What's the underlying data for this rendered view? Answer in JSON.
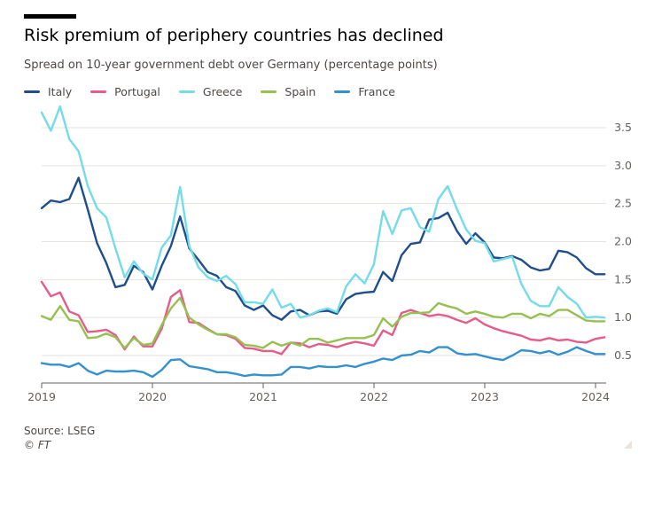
{
  "header": {
    "title": "Risk premium of periphery countries has declined",
    "subtitle": "Spread on 10-year government debt over Germany (percentage points)"
  },
  "footer": {
    "source": "Source: LSEG",
    "credit": "© FT"
  },
  "chart_data": {
    "type": "line",
    "title": "Risk premium of periphery countries has declined",
    "subtitle": "Spread on 10-year government debt over Germany (percentage points)",
    "xlabel": "",
    "ylabel": "",
    "xlim": [
      2019.0,
      2024.2
    ],
    "ylim": [
      0.2,
      3.7
    ],
    "yticks": [
      0.5,
      1.0,
      1.5,
      2.0,
      2.5,
      3.0,
      3.5
    ],
    "ytick_labels": [
      "0.5",
      "1.0",
      "1.5",
      "2.0",
      "2.5",
      "3.0",
      "3.5"
    ],
    "xticks": [
      2019,
      2020,
      2021,
      2022,
      2023,
      2024
    ],
    "xtick_labels": [
      "2019",
      "2020",
      "2021",
      "2022",
      "2023",
      "2024"
    ],
    "grid": "horizontal",
    "legend_position": "top-left",
    "x_frequency": "monthly",
    "x_start": 2019.0,
    "x_step": 0.0833,
    "series": [
      {
        "name": "Italy",
        "color": "#1f4e8c",
        "values": [
          2.44,
          2.54,
          2.52,
          2.56,
          2.84,
          2.42,
          1.98,
          1.72,
          1.4,
          1.43,
          1.68,
          1.6,
          1.37,
          1.68,
          1.94,
          2.33,
          1.91,
          1.76,
          1.6,
          1.55,
          1.4,
          1.35,
          1.16,
          1.1,
          1.16,
          1.03,
          0.97,
          1.08,
          1.1,
          1.03,
          1.08,
          1.09,
          1.05,
          1.24,
          1.31,
          1.33,
          1.34,
          1.6,
          1.48,
          1.82,
          1.97,
          1.99,
          2.29,
          2.31,
          2.38,
          2.14,
          1.97,
          2.11,
          1.99,
          1.79,
          1.78,
          1.81,
          1.76,
          1.66,
          1.62,
          1.64,
          1.88,
          1.86,
          1.79,
          1.65,
          1.57,
          1.57
        ]
      },
      {
        "name": "Portugal",
        "color": "#e55c8a",
        "values": [
          1.47,
          1.28,
          1.33,
          1.08,
          1.03,
          0.81,
          0.82,
          0.84,
          0.77,
          0.58,
          0.75,
          0.62,
          0.62,
          0.85,
          1.27,
          1.36,
          0.94,
          0.93,
          0.85,
          0.78,
          0.77,
          0.72,
          0.6,
          0.59,
          0.56,
          0.56,
          0.52,
          0.67,
          0.66,
          0.61,
          0.65,
          0.64,
          0.61,
          0.65,
          0.68,
          0.66,
          0.63,
          0.83,
          0.77,
          1.06,
          1.1,
          1.06,
          1.02,
          1.04,
          1.02,
          0.97,
          0.93,
          0.99,
          0.91,
          0.86,
          0.82,
          0.79,
          0.76,
          0.71,
          0.7,
          0.73,
          0.7,
          0.71,
          0.68,
          0.67,
          0.72,
          0.74
        ]
      },
      {
        "name": "Greece",
        "color": "#73dce8",
        "values": [
          3.7,
          3.46,
          3.78,
          3.35,
          3.19,
          2.73,
          2.44,
          2.32,
          1.91,
          1.53,
          1.74,
          1.58,
          1.5,
          1.92,
          2.08,
          2.72,
          1.94,
          1.66,
          1.53,
          1.48,
          1.55,
          1.44,
          1.2,
          1.2,
          1.18,
          1.37,
          1.13,
          1.18,
          1.0,
          1.03,
          1.09,
          1.12,
          1.07,
          1.41,
          1.57,
          1.45,
          1.7,
          2.4,
          2.1,
          2.41,
          2.44,
          2.19,
          2.13,
          2.56,
          2.73,
          2.43,
          2.16,
          2.01,
          1.98,
          1.74,
          1.77,
          1.8,
          1.44,
          1.22,
          1.15,
          1.15,
          1.4,
          1.27,
          1.18,
          1.0,
          1.01,
          1.0
        ]
      },
      {
        "name": "Spain",
        "color": "#96c050",
        "values": [
          1.02,
          0.97,
          1.15,
          0.97,
          0.95,
          0.73,
          0.74,
          0.79,
          0.74,
          0.6,
          0.73,
          0.64,
          0.66,
          0.9,
          1.12,
          1.26,
          1.0,
          0.91,
          0.84,
          0.78,
          0.78,
          0.74,
          0.64,
          0.63,
          0.6,
          0.68,
          0.63,
          0.67,
          0.63,
          0.72,
          0.72,
          0.67,
          0.7,
          0.73,
          0.73,
          0.73,
          0.77,
          0.99,
          0.88,
          1.01,
          1.06,
          1.06,
          1.07,
          1.19,
          1.15,
          1.12,
          1.05,
          1.08,
          1.05,
          1.01,
          1.0,
          1.05,
          1.05,
          0.99,
          1.05,
          1.02,
          1.1,
          1.1,
          1.03,
          0.96,
          0.95,
          0.95
        ]
      },
      {
        "name": "France",
        "color": "#3491ce",
        "values": [
          0.4,
          0.38,
          0.38,
          0.35,
          0.4,
          0.3,
          0.25,
          0.3,
          0.29,
          0.29,
          0.3,
          0.28,
          0.22,
          0.31,
          0.44,
          0.45,
          0.36,
          0.34,
          0.32,
          0.28,
          0.28,
          0.26,
          0.23,
          0.25,
          0.24,
          0.24,
          0.25,
          0.35,
          0.35,
          0.33,
          0.36,
          0.35,
          0.35,
          0.37,
          0.35,
          0.39,
          0.42,
          0.46,
          0.44,
          0.5,
          0.51,
          0.56,
          0.54,
          0.61,
          0.61,
          0.53,
          0.51,
          0.52,
          0.49,
          0.46,
          0.44,
          0.5,
          0.57,
          0.56,
          0.53,
          0.56,
          0.51,
          0.55,
          0.61,
          0.56,
          0.52,
          0.52
        ]
      }
    ]
  }
}
